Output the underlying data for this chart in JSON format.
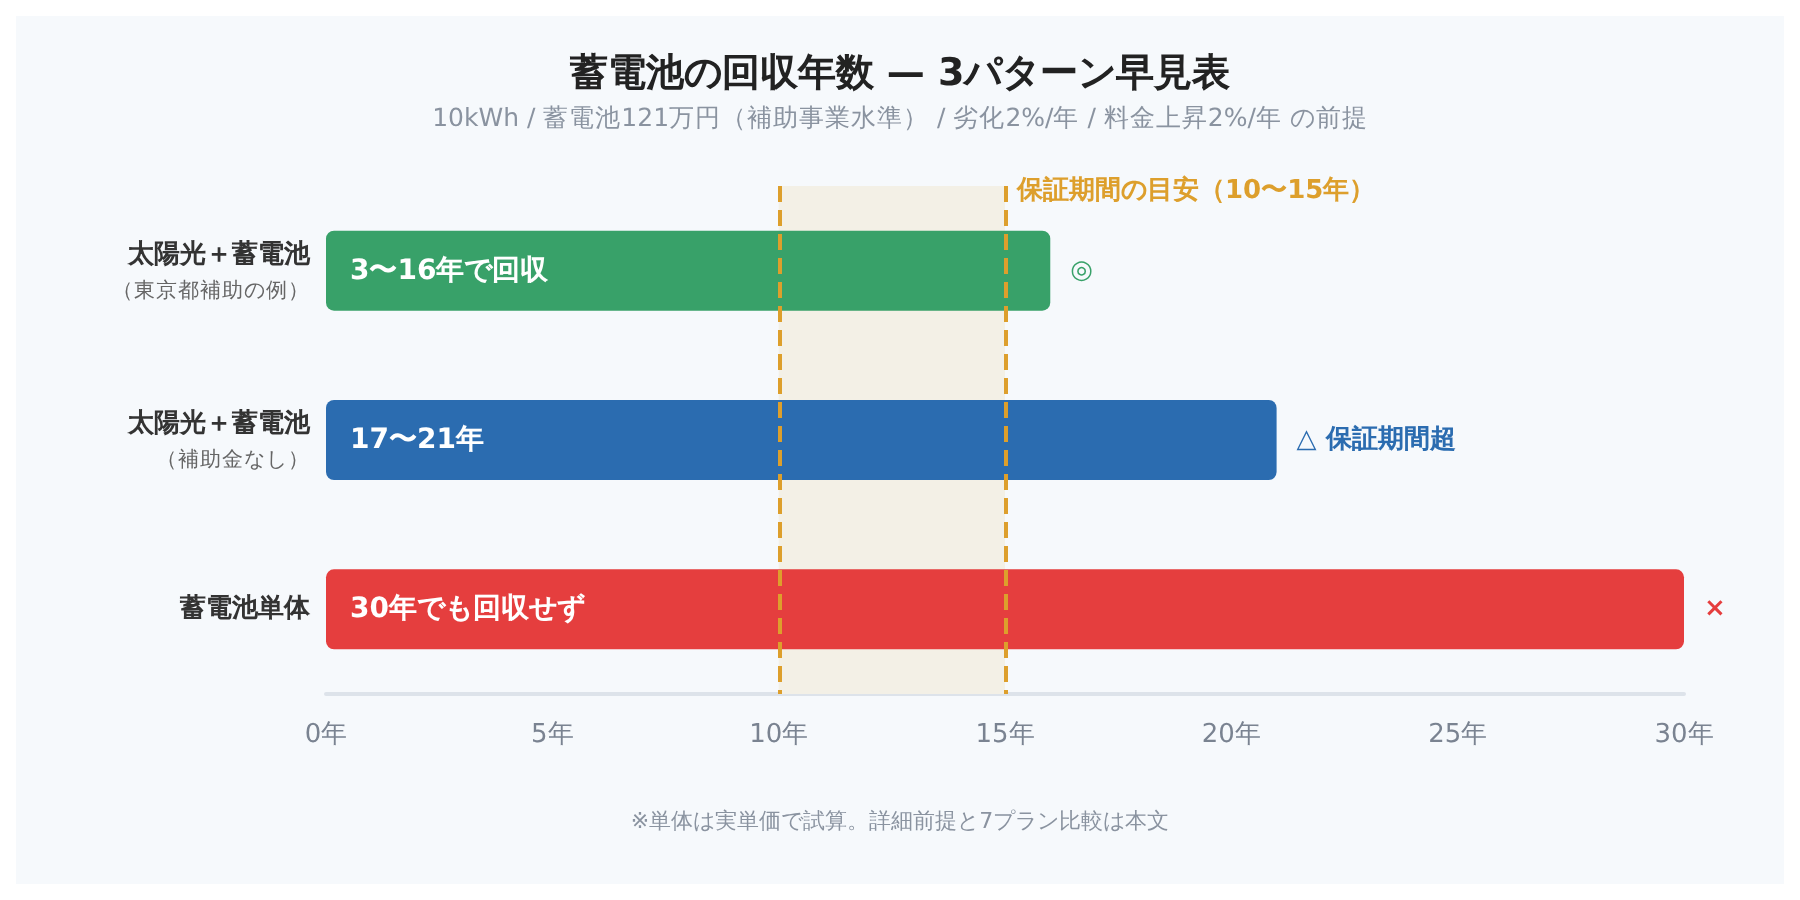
{
  "chart_data": {
    "type": "bar",
    "orientation": "horizontal",
    "title": "蓄電池の回収年数 — 3パターン早見表",
    "subtitle": "10kWh / 蓄電池121万円（補助事業水準） / 劣化2%/年 / 料金上昇2%/年 の前提",
    "categories": [
      "太陽光＋蓄電池（東京都補助の例）",
      "太陽光＋蓄電池（補助金なし）",
      "蓄電池単体"
    ],
    "values": [
      16,
      21,
      30
    ],
    "colors": [
      "#38a169",
      "#2b6cb0",
      "#e53e3e"
    ],
    "value_labels": [
      "3〜16年で回収",
      "17〜21年",
      "30年でも回収せず"
    ],
    "xlim": [
      0,
      30
    ],
    "xticks": [
      {
        "value": 0,
        "label": "0年"
      },
      {
        "value": 5,
        "label": "5年"
      },
      {
        "value": 10,
        "label": "10年"
      },
      {
        "value": 15,
        "label": "15年"
      },
      {
        "value": 20,
        "label": "20年"
      },
      {
        "value": 25,
        "label": "25年"
      },
      {
        "value": 30,
        "label": "30年"
      }
    ],
    "bands": [
      {
        "axis": "x",
        "from": 10,
        "to": 15,
        "label": "保証期間の目安（10〜15年）",
        "color": "#f3f0e6"
      }
    ],
    "ref_lines": [
      {
        "axis": "x",
        "value": 10,
        "label": null,
        "color": "#dd9f2c",
        "line_style": "dashed"
      },
      {
        "axis": "x",
        "value": 15,
        "label": null,
        "color": "#dd9f2c",
        "line_style": "dashed"
      }
    ],
    "annotations": [
      {
        "text": "◎",
        "x": 16,
        "y": "太陽光＋蓄電池（東京都補助の例）"
      },
      {
        "text": "△ 保証期間超",
        "x": 21,
        "y": "太陽光＋蓄電池（補助金なし）"
      },
      {
        "text": "×",
        "x": 30,
        "y": "蓄電池単体"
      },
      "※単体は実単価で試算。詳細前提と7プラン比較は本文"
    ],
    "grid": false
  }
}
